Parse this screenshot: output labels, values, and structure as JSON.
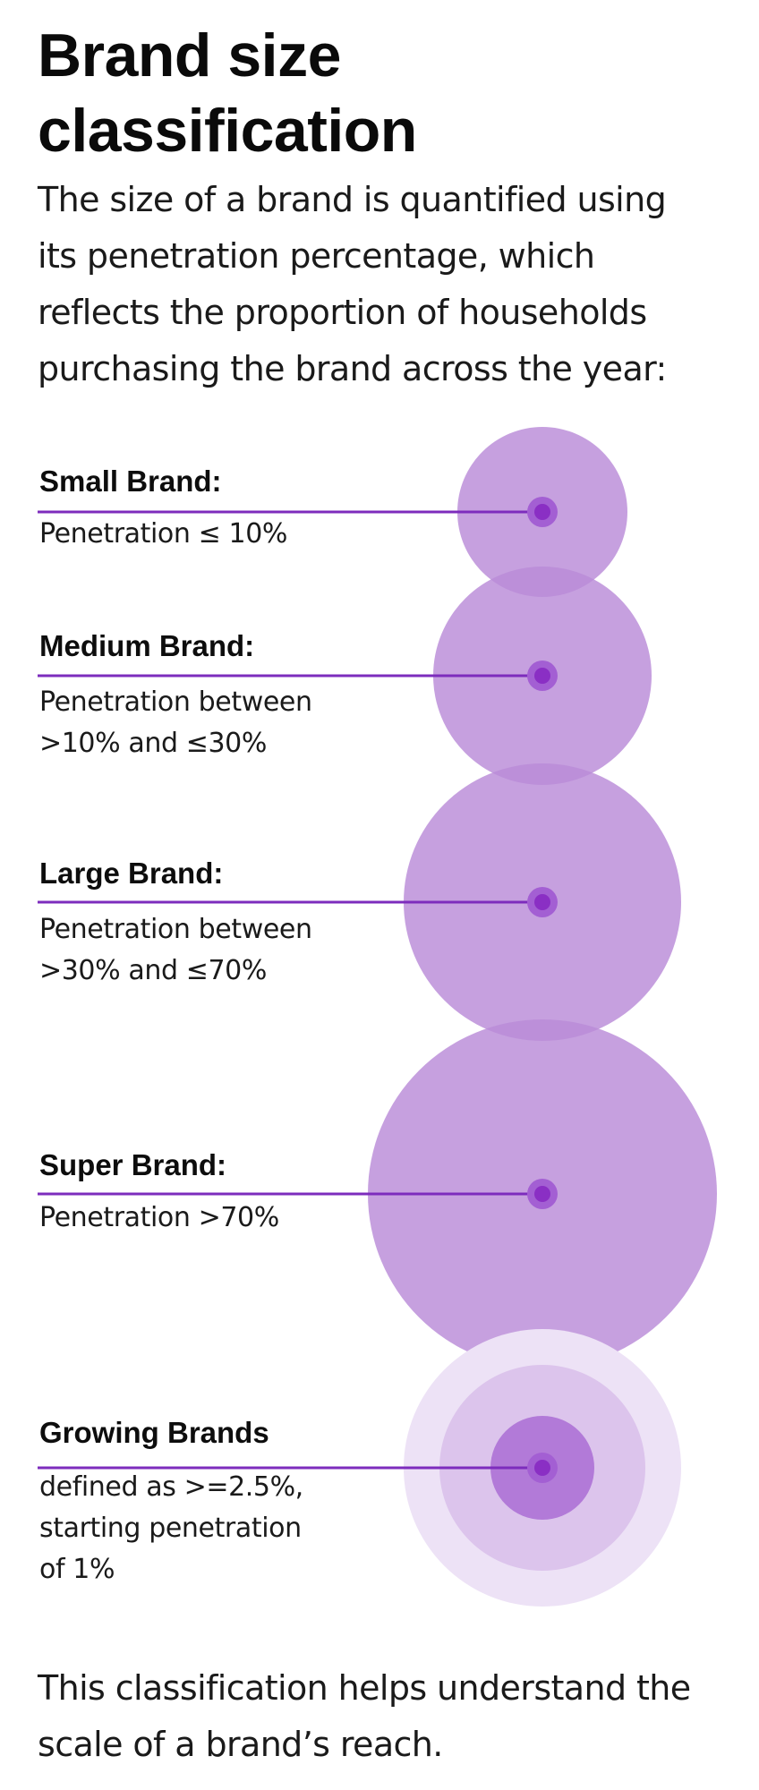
{
  "title": "Brand size classification",
  "intro": "The size of a brand is quantified using its penetration percentage, which reflects the proportion of households purchasing the brand across the year:",
  "categories": [
    {
      "name": "Small Brand:",
      "description": "Penetration ≤ 10%"
    },
    {
      "name": "Medium Brand:",
      "description": "Penetration between\n>10% and ≤30%"
    },
    {
      "name": "Large Brand:",
      "description": "Penetration between\n>30% and ≤70%"
    },
    {
      "name": "Super Brand:",
      "description": "Penetration >70%"
    },
    {
      "name": "Growing Brands",
      "description": "defined as >=2.5%,\nstarting penetration\nof 1%"
    }
  ],
  "outro": "This classification helps understand the scale of a brand’s reach.",
  "colors": {
    "bubble": "#b98bd8",
    "line": "#7d2cbd",
    "dot_inner": "#8a2fc4",
    "dot_halo": "#a35fd3",
    "growing_outer": "#ede2f6",
    "growing_middle": "#dcc4ec",
    "growing_inner": "#b27ad8"
  }
}
